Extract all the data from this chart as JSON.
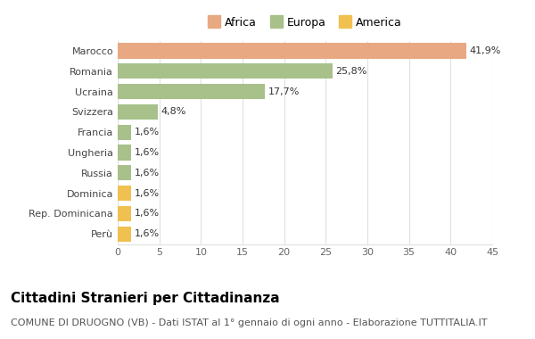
{
  "categories": [
    "Marocco",
    "Romania",
    "Ucraina",
    "Svizzera",
    "Francia",
    "Ungheria",
    "Russia",
    "Dominica",
    "Rep. Dominicana",
    "Perù"
  ],
  "values": [
    41.9,
    25.8,
    17.7,
    4.8,
    1.6,
    1.6,
    1.6,
    1.6,
    1.6,
    1.6
  ],
  "labels": [
    "41,9%",
    "25,8%",
    "17,7%",
    "4,8%",
    "1,6%",
    "1,6%",
    "1,6%",
    "1,6%",
    "1,6%",
    "1,6%"
  ],
  "colors": [
    "#E8A882",
    "#A8C08A",
    "#A8C08A",
    "#A8C08A",
    "#A8C08A",
    "#A8C08A",
    "#A8C08A",
    "#F0C050",
    "#F0C050",
    "#F0C050"
  ],
  "legend_labels": [
    "Africa",
    "Europa",
    "America"
  ],
  "legend_colors": [
    "#E8A882",
    "#A8C08A",
    "#F0C050"
  ],
  "title": "Cittadini Stranieri per Cittadinanza",
  "subtitle": "COMUNE DI DRUOGNO (VB) - Dati ISTAT al 1° gennaio di ogni anno - Elaborazione TUTTITALIA.IT",
  "xlim": [
    0,
    45
  ],
  "xticks": [
    0,
    5,
    10,
    15,
    20,
    25,
    30,
    35,
    40,
    45
  ],
  "background_color": "#ffffff",
  "grid_color": "#e0e0e0",
  "title_fontsize": 11,
  "subtitle_fontsize": 8,
  "label_fontsize": 8,
  "tick_fontsize": 8,
  "bar_height": 0.75
}
